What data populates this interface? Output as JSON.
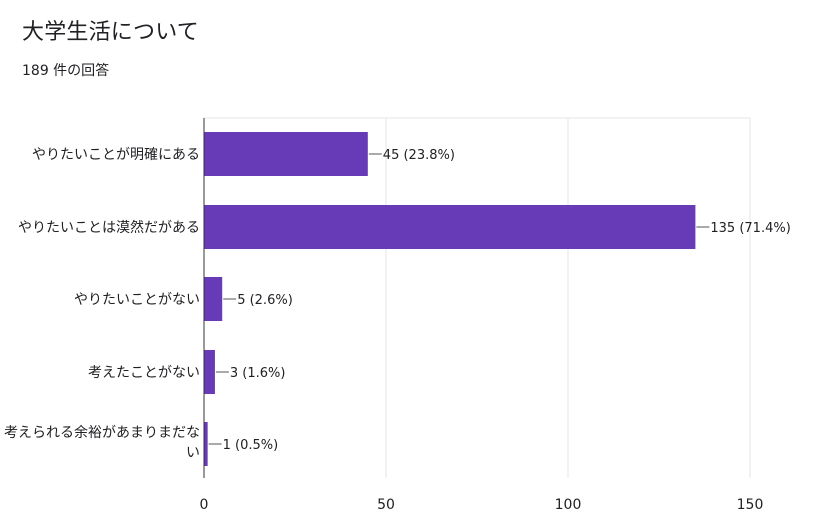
{
  "header": {
    "title": "大学生活について",
    "response_count": "189 件の回答"
  },
  "colors": {
    "bar": "#673ab7",
    "grid": "#e6e6e6",
    "axis": "#333333",
    "leader": "#555555"
  },
  "chart_data": {
    "type": "bar",
    "orientation": "horizontal",
    "title": "大学生活について",
    "subtitle": "189 件の回答",
    "categories": [
      "やりたいことが明確にある",
      "やりたいことは漠然だがある",
      "やりたいことがない",
      "考えたことがない",
      "考えられる余裕があまりまだない"
    ],
    "category_label_lines": [
      [
        "やりたいことが明確にある"
      ],
      [
        "やりたいことは漠然だがある"
      ],
      [
        "やりたいことがない"
      ],
      [
        "考えたことがない"
      ],
      [
        "考えられる余裕があまりまだな",
        "い"
      ]
    ],
    "values": [
      45,
      135,
      5,
      3,
      1
    ],
    "value_labels": [
      "45 (23.8%)",
      "135 (71.4%)",
      "5 (2.6%)",
      "3 (1.6%)",
      "1 (0.5%)"
    ],
    "xlim": [
      0,
      150
    ],
    "xticks": [
      0,
      50,
      100,
      150
    ],
    "xtick_labels": [
      "0",
      "50",
      "100",
      "150"
    ],
    "grid": true,
    "legend": "none"
  }
}
